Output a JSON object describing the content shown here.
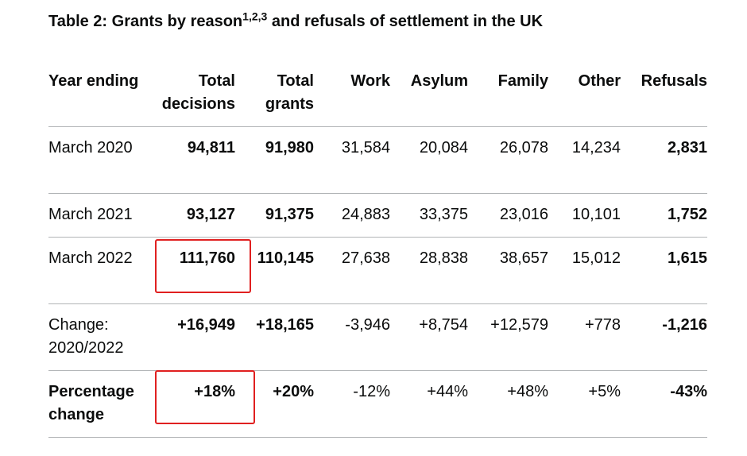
{
  "caption": {
    "title_start": "Table 2: Grants by reason",
    "footnotes": "1,2,3",
    "title_end": " and refusals of settlement in the UK"
  },
  "columns": [
    "Year ending",
    "Total decisions",
    "Total grants",
    "Work",
    "Asylum",
    "Family",
    "Other",
    "Refusals"
  ],
  "rows": [
    {
      "year": "March 2020",
      "total_decisions": "94,811",
      "total_grants": "91,980",
      "work": "31,584",
      "asylum": "20,084",
      "family": "26,078",
      "other": "14,234",
      "refusals": "2,831"
    },
    {
      "year": "March 2021",
      "total_decisions": "93,127",
      "total_grants": "91,375",
      "work": "24,883",
      "asylum": "33,375",
      "family": "23,016",
      "other": "10,101",
      "refusals": "1,752"
    },
    {
      "year": "March 2022",
      "total_decisions": "111,760",
      "total_grants": "110,145",
      "work": "27,638",
      "asylum": "28,838",
      "family": "38,657",
      "other": "15,012",
      "refusals": "1,615"
    },
    {
      "year": "Change: 2020/2022",
      "total_decisions": "+16,949",
      "total_grants": "+18,165",
      "work": "-3,946",
      "asylum": "+8,754",
      "family": "+12,579",
      "other": "+778",
      "refusals": "-1,216"
    },
    {
      "year": "Percentage change",
      "total_decisions": "+18%",
      "total_grants": "+20%",
      "work": "-12%",
      "asylum": "+44%",
      "family": "+48%",
      "other": "+5%",
      "refusals": "-43%"
    }
  ],
  "highlight_color": "#e02020"
}
